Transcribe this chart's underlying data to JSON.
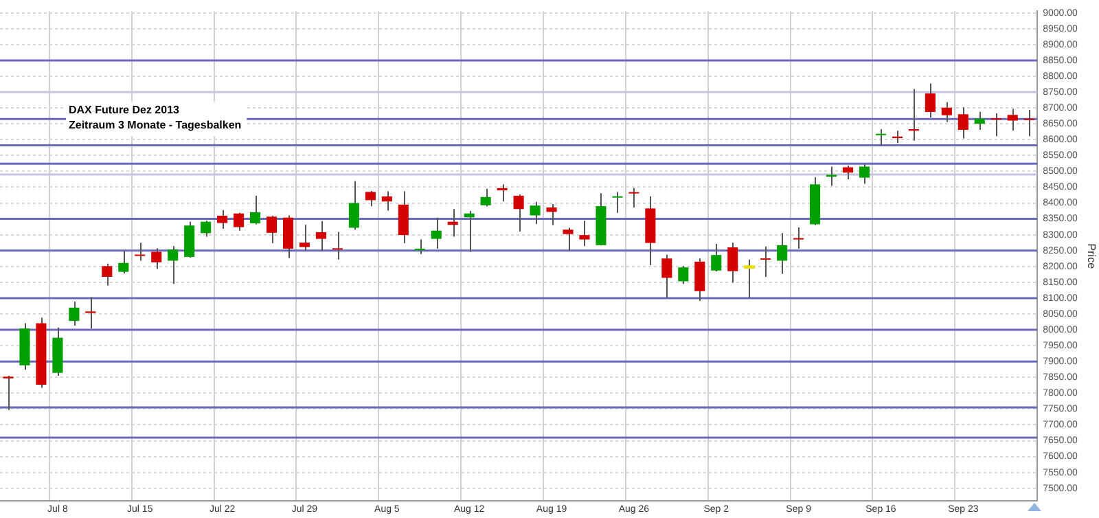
{
  "chart_data": {
    "type": "candlestick",
    "title": "DAX Future Dez 2013",
    "subtitle": "Zeitraum 3 Monate - Tagesbalken",
    "ylabel": "Price",
    "categories": [
      null,
      null,
      null,
      "Jul 8",
      null,
      null,
      null,
      null,
      "Jul 15",
      null,
      null,
      null,
      null,
      "Jul 22",
      null,
      null,
      null,
      null,
      "Jul 29",
      null,
      null,
      null,
      null,
      "Aug 5",
      null,
      null,
      null,
      null,
      "Aug 12",
      null,
      null,
      null,
      null,
      "Aug 19",
      null,
      null,
      null,
      null,
      "Aug 26",
      null,
      null,
      null,
      null,
      "Sep 2",
      null,
      null,
      null,
      null,
      "Sep 9",
      null,
      null,
      null,
      null,
      "Sep 16",
      null,
      null,
      null,
      null,
      "Sep 23",
      null,
      null,
      null,
      null
    ],
    "ohlc": [
      [
        7852,
        7855,
        7747,
        7847
      ],
      [
        7888,
        8021,
        7874,
        8004
      ],
      [
        8021,
        8038,
        7817,
        7827
      ],
      [
        7864,
        8007,
        7855,
        7975
      ],
      [
        8028,
        8089,
        8013,
        8070
      ],
      [
        8058,
        8103,
        8004,
        8053
      ],
      [
        8201,
        8209,
        8140,
        8167
      ],
      [
        8183,
        8249,
        8178,
        8211
      ],
      [
        8237,
        8275,
        8218,
        8233
      ],
      [
        8246,
        8257,
        8192,
        8213
      ],
      [
        8218,
        8264,
        8145,
        8253
      ],
      [
        8230,
        8341,
        8228,
        8329
      ],
      [
        8305,
        8344,
        8294,
        8341
      ],
      [
        8360,
        8378,
        8319,
        8337
      ],
      [
        8367,
        8369,
        8313,
        8324
      ],
      [
        8336,
        8423,
        8333,
        8371
      ],
      [
        8357,
        8360,
        8273,
        8306
      ],
      [
        8354,
        8361,
        8226,
        8256
      ],
      [
        8275,
        8331,
        8249,
        8261
      ],
      [
        8308,
        8343,
        8249,
        8287
      ],
      [
        8257,
        8309,
        8222,
        8253
      ],
      [
        8322,
        8469,
        8316,
        8400
      ],
      [
        8435,
        8438,
        8390,
        8409
      ],
      [
        8421,
        8437,
        8376,
        8405
      ],
      [
        8395,
        8437,
        8273,
        8299
      ],
      [
        8251,
        8285,
        8239,
        8256
      ],
      [
        8287,
        8354,
        8256,
        8313
      ],
      [
        8341,
        8381,
        8294,
        8331
      ],
      [
        8355,
        8375,
        8246,
        8367
      ],
      [
        8393,
        8445,
        8389,
        8419
      ],
      [
        8447,
        8459,
        8405,
        8440
      ],
      [
        8423,
        8427,
        8310,
        8381
      ],
      [
        8361,
        8404,
        8334,
        8392
      ],
      [
        8386,
        8397,
        8330,
        8372
      ],
      [
        8316,
        8322,
        8249,
        8302
      ],
      [
        8299,
        8344,
        8264,
        8285
      ],
      [
        8267,
        8431,
        8266,
        8390
      ],
      [
        8417,
        8435,
        8369,
        8420
      ],
      [
        8434,
        8447,
        8386,
        8430
      ],
      [
        8383,
        8421,
        8204,
        8274
      ],
      [
        8225,
        8237,
        8101,
        8164
      ],
      [
        8153,
        8201,
        8145,
        8197
      ],
      [
        8215,
        8225,
        8091,
        8122
      ],
      [
        8187,
        8271,
        8184,
        8236
      ],
      [
        8260,
        8275,
        8149,
        8185
      ],
      [
        8199,
        8222,
        8101,
        8199
      ],
      [
        8225,
        8263,
        8167,
        8221
      ],
      [
        8218,
        8305,
        8176,
        8267
      ],
      [
        8289,
        8323,
        8256,
        8285
      ],
      [
        8333,
        8482,
        8330,
        8459
      ],
      [
        8483,
        8515,
        8454,
        8489
      ],
      [
        8513,
        8518,
        8475,
        8496
      ],
      [
        8480,
        8522,
        8461,
        8515
      ],
      [
        8614,
        8633,
        8581,
        8618
      ],
      [
        8610,
        8628,
        8589,
        8605
      ],
      [
        8633,
        8760,
        8597,
        8628
      ],
      [
        8746,
        8777,
        8670,
        8687
      ],
      [
        8701,
        8718,
        8656,
        8677
      ],
      [
        8680,
        8702,
        8604,
        8631
      ],
      [
        8650,
        8688,
        8631,
        8666
      ],
      [
        8667,
        8683,
        8611,
        8663
      ],
      [
        8678,
        8697,
        8628,
        8660
      ],
      [
        8666,
        8694,
        8611,
        8662
      ]
    ],
    "colors": [
      "#d40000",
      "#00a000",
      "#d40000",
      "#00a000",
      "#00a000",
      "#d40000",
      "#d40000",
      "#00a000",
      "#d40000",
      "#d40000",
      "#00a000",
      "#00a000",
      "#00a000",
      "#d40000",
      "#d40000",
      "#00a000",
      "#d40000",
      "#d40000",
      "#d40000",
      "#d40000",
      "#d40000",
      "#00a000",
      "#d40000",
      "#d40000",
      "#d40000",
      "#00a000",
      "#00a000",
      "#d40000",
      "#00a000",
      "#00a000",
      "#d40000",
      "#d40000",
      "#00a000",
      "#d40000",
      "#d40000",
      "#d40000",
      "#00a000",
      "#00a000",
      "#d40000",
      "#d40000",
      "#d40000",
      "#00a000",
      "#d40000",
      "#00a000",
      "#d40000",
      "#e8e000",
      "#d40000",
      "#00a000",
      "#d40000",
      "#00a000",
      "#00a000",
      "#d40000",
      "#00a000",
      "#00a000",
      "#d40000",
      "#d40000",
      "#d40000",
      "#d40000",
      "#d40000",
      "#00a000",
      "#d40000",
      "#d40000",
      "#d40000"
    ],
    "ylim": [
      7460,
      9005
    ],
    "yticks": [
      {
        "value": 7500,
        "label": "7500.00"
      },
      {
        "value": 7550,
        "label": "7550.00"
      },
      {
        "value": 7600,
        "label": "7600.00"
      },
      {
        "value": 7650,
        "label": "7650.00"
      },
      {
        "value": 7700,
        "label": "7700.00"
      },
      {
        "value": 7750,
        "label": "7750.00"
      },
      {
        "value": 7800,
        "label": "7800.00"
      },
      {
        "value": 7850,
        "label": "7850.00"
      },
      {
        "value": 7900,
        "label": "7900.00"
      },
      {
        "value": 7950,
        "label": "7950.00"
      },
      {
        "value": 8000,
        "label": "8000.00"
      },
      {
        "value": 8050,
        "label": "8050.00"
      },
      {
        "value": 8100,
        "label": "8100.00"
      },
      {
        "value": 8150,
        "label": "8150.00"
      },
      {
        "value": 8200,
        "label": "8200.00"
      },
      {
        "value": 8250,
        "label": "8250.00"
      },
      {
        "value": 8300,
        "label": "8300.00"
      },
      {
        "value": 8350,
        "label": "8350.00"
      },
      {
        "value": 8400,
        "label": "8400.00"
      },
      {
        "value": 8450,
        "label": "8450.00"
      },
      {
        "value": 8500,
        "label": "8500.00"
      },
      {
        "value": 8550,
        "label": "8550.00"
      },
      {
        "value": 8600,
        "label": "8600.00"
      },
      {
        "value": 8650,
        "label": "8650.00"
      },
      {
        "value": 8700,
        "label": "8700.00"
      },
      {
        "value": 8750,
        "label": "8750.00"
      },
      {
        "value": 8800,
        "label": "8800.00"
      },
      {
        "value": 8850,
        "label": "8850.00"
      },
      {
        "value": 8900,
        "label": "8900.00"
      },
      {
        "value": 8950,
        "label": "8950.00"
      },
      {
        "value": 9000,
        "label": "9000.00"
      }
    ],
    "ref_lines": [
      {
        "axis": "y",
        "value": 8850,
        "color": "#6a6ab8"
      },
      {
        "axis": "y",
        "value": 8750,
        "color": "#c4c4e0"
      },
      {
        "axis": "y",
        "value": 8665,
        "color": "#6a6ab8"
      },
      {
        "axis": "y",
        "value": 8582,
        "color": "#6a6ab8"
      },
      {
        "axis": "y",
        "value": 8524,
        "color": "#6a6ab8"
      },
      {
        "axis": "y",
        "value": 8490,
        "color": "#c4c4e0"
      },
      {
        "axis": "y",
        "value": 8350,
        "color": "#6a6ab8"
      },
      {
        "axis": "y",
        "value": 8250,
        "color": "#6a6ab8"
      },
      {
        "axis": "y",
        "value": 8100,
        "color": "#6a6ab8"
      },
      {
        "axis": "y",
        "value": 8000,
        "color": "#6a6ab8"
      },
      {
        "axis": "y",
        "value": 7900,
        "color": "#6a6ab8"
      },
      {
        "axis": "y",
        "value": 7755,
        "color": "#6a6ab8"
      },
      {
        "axis": "y",
        "value": 7660,
        "color": "#6a6ab8"
      }
    ],
    "grid": true,
    "legend": false
  }
}
